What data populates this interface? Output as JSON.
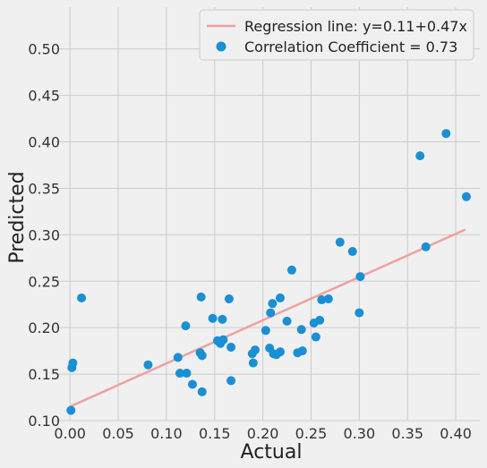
{
  "chart_data": {
    "type": "scatter",
    "xlabel": "Actual",
    "ylabel": "Predicted",
    "xlim": [
      -0.015,
      0.425
    ],
    "ylim": [
      0.1,
      0.545
    ],
    "xticks": [
      "0.00",
      "0.05",
      "0.10",
      "0.15",
      "0.20",
      "0.25",
      "0.30",
      "0.35",
      "0.40"
    ],
    "yticks": [
      "0.10",
      "0.15",
      "0.20",
      "0.25",
      "0.30",
      "0.35",
      "0.40",
      "0.45",
      "0.50"
    ],
    "grid": true,
    "legend_position": "top-right",
    "regression": {
      "label": "Regression line: y=0.11+0.47x",
      "intercept": 0.115,
      "slope": 0.465,
      "x_range": [
        0.0,
        0.41
      ],
      "color": "#f0a0a0"
    },
    "scatter": {
      "label": "Correlation Coefficient = 0.73",
      "color": "#1a8fd3",
      "points": [
        [
          0.001,
          0.111
        ],
        [
          0.002,
          0.157
        ],
        [
          0.003,
          0.162
        ],
        [
          0.012,
          0.232
        ],
        [
          0.081,
          0.16
        ],
        [
          0.112,
          0.168
        ],
        [
          0.114,
          0.151
        ],
        [
          0.12,
          0.202
        ],
        [
          0.121,
          0.151
        ],
        [
          0.127,
          0.139
        ],
        [
          0.135,
          0.173
        ],
        [
          0.136,
          0.233
        ],
        [
          0.137,
          0.17
        ],
        [
          0.137,
          0.131
        ],
        [
          0.148,
          0.21
        ],
        [
          0.153,
          0.186
        ],
        [
          0.156,
          0.183
        ],
        [
          0.158,
          0.209
        ],
        [
          0.159,
          0.187
        ],
        [
          0.165,
          0.231
        ],
        [
          0.167,
          0.179
        ],
        [
          0.167,
          0.143
        ],
        [
          0.189,
          0.172
        ],
        [
          0.19,
          0.162
        ],
        [
          0.192,
          0.176
        ],
        [
          0.203,
          0.197
        ],
        [
          0.207,
          0.178
        ],
        [
          0.208,
          0.216
        ],
        [
          0.21,
          0.226
        ],
        [
          0.211,
          0.172
        ],
        [
          0.214,
          0.171
        ],
        [
          0.218,
          0.174
        ],
        [
          0.218,
          0.232
        ],
        [
          0.225,
          0.207
        ],
        [
          0.23,
          0.262
        ],
        [
          0.236,
          0.173
        ],
        [
          0.24,
          0.198
        ],
        [
          0.241,
          0.175
        ],
        [
          0.253,
          0.205
        ],
        [
          0.255,
          0.19
        ],
        [
          0.259,
          0.208
        ],
        [
          0.261,
          0.23
        ],
        [
          0.268,
          0.231
        ],
        [
          0.28,
          0.292
        ],
        [
          0.293,
          0.282
        ],
        [
          0.3,
          0.216
        ],
        [
          0.301,
          0.255
        ],
        [
          0.363,
          0.385
        ],
        [
          0.369,
          0.287
        ],
        [
          0.39,
          0.409
        ],
        [
          0.411,
          0.341
        ]
      ]
    }
  }
}
